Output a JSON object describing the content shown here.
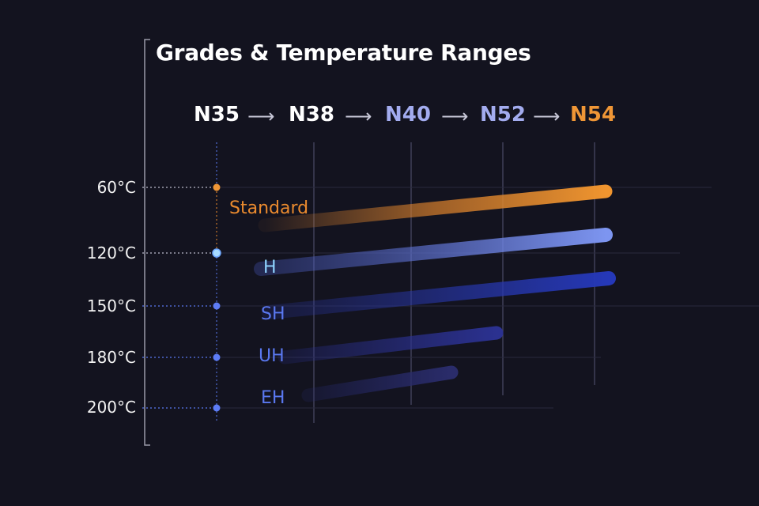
{
  "title": "Grades & Temperature Ranges",
  "grades": [
    {
      "label": "N35",
      "color": "#ffffff"
    },
    {
      "label": "N38",
      "color": "#ffffff"
    },
    {
      "label": "N40",
      "color": "#a3acef"
    },
    {
      "label": "N52",
      "color": "#a3acef"
    },
    {
      "label": "N54",
      "color": "#ef9636"
    }
  ],
  "arrow_glyph": "⟶",
  "temperatures": [
    "60°C",
    "120°C",
    "150°C",
    "180°C",
    "200°C"
  ],
  "classes": [
    {
      "label": "Standard",
      "color": "#ea8a2e",
      "max_temp": "60°C",
      "grade_range": [
        "N35",
        "N54"
      ]
    },
    {
      "label": "H",
      "color": "#8fd3ff",
      "max_temp": "120°C",
      "grade_range": [
        "N35",
        "N54"
      ]
    },
    {
      "label": "SH",
      "color": "#5a78f0",
      "max_temp": "150°C",
      "grade_range": [
        "N35",
        "N54"
      ]
    },
    {
      "label": "UH",
      "color": "#5a78f0",
      "max_temp": "180°C",
      "grade_range": [
        "N35",
        "N52"
      ]
    },
    {
      "label": "EH",
      "color": "#5a78f0",
      "max_temp": "200°C",
      "grade_range": [
        "N35",
        "N40"
      ]
    }
  ]
}
